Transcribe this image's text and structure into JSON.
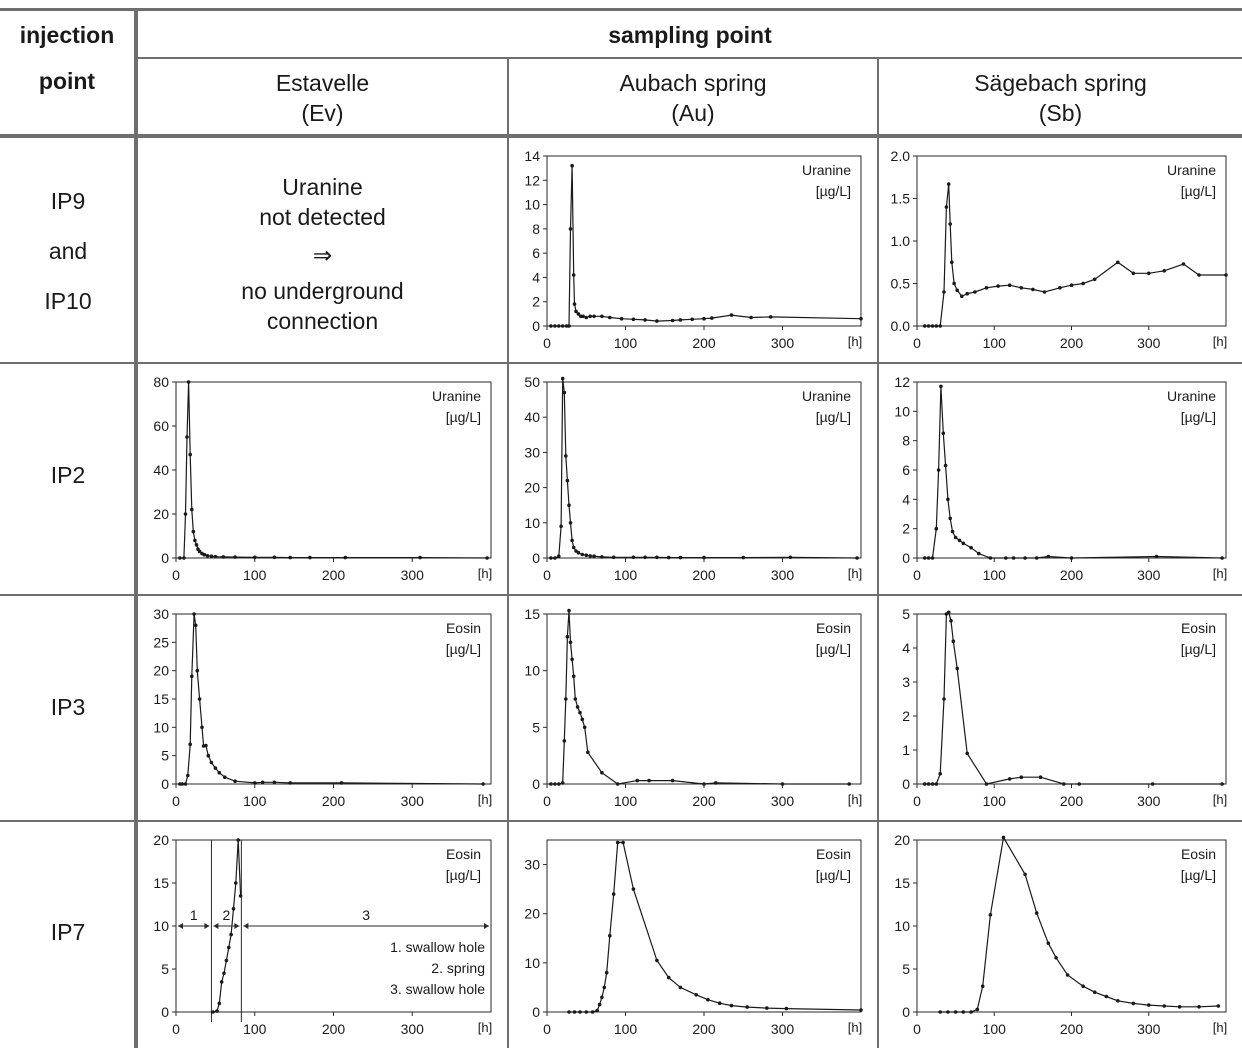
{
  "header": {
    "injection": "injection",
    "point": "point",
    "sampling_point": "sampling point",
    "columns": [
      {
        "name": "Estavelle",
        "abbr": "(Ev)"
      },
      {
        "name": "Aubach spring",
        "abbr": "(Au)"
      },
      {
        "name": "Sägebach spring",
        "abbr": "(Sb)"
      }
    ]
  },
  "rows": [
    {
      "label_lines": [
        "IP9",
        "and",
        "IP10"
      ]
    },
    {
      "label_lines": [
        "IP2"
      ]
    },
    {
      "label_lines": [
        "IP3"
      ]
    },
    {
      "label_lines": [
        "IP7"
      ]
    }
  ],
  "no_detection_note": {
    "line1": "Uranine",
    "line2": "not detected",
    "arrow": "⇒",
    "line3": "no underground",
    "line4": "connection"
  },
  "ip7_ev_annotations": {
    "segments": [
      "1",
      "2",
      "3"
    ],
    "legend": [
      "1. swallow hole",
      "2. spring",
      "3. swallow hole"
    ]
  },
  "chart_data": [
    {
      "id": "au-ip9",
      "type": "line",
      "tracer": "Uranine",
      "unit": "[µg/L]",
      "xunit": "[h]",
      "xlim": [
        0,
        400
      ],
      "ylim": [
        0,
        14
      ],
      "yticks": [
        0,
        2,
        4,
        6,
        8,
        10,
        12,
        14
      ],
      "ydec": 0,
      "points": [
        [
          5,
          0
        ],
        [
          10,
          0
        ],
        [
          15,
          0
        ],
        [
          20,
          0
        ],
        [
          25,
          0
        ],
        [
          28,
          0
        ],
        [
          30,
          8
        ],
        [
          32,
          13.2
        ],
        [
          34,
          4.2
        ],
        [
          35,
          1.8
        ],
        [
          37,
          1.2
        ],
        [
          40,
          1
        ],
        [
          43,
          0.8
        ],
        [
          46,
          0.8
        ],
        [
          50,
          0.7
        ],
        [
          55,
          0.8
        ],
        [
          60,
          0.8
        ],
        [
          70,
          0.8
        ],
        [
          80,
          0.7
        ],
        [
          95,
          0.6
        ],
        [
          110,
          0.55
        ],
        [
          125,
          0.5
        ],
        [
          140,
          0.4
        ],
        [
          160,
          0.45
        ],
        [
          170,
          0.5
        ],
        [
          185,
          0.55
        ],
        [
          200,
          0.6
        ],
        [
          210,
          0.65
        ],
        [
          235,
          0.9
        ],
        [
          260,
          0.7
        ],
        [
          285,
          0.75
        ],
        [
          400,
          0.6
        ]
      ]
    },
    {
      "id": "sb-ip9",
      "type": "line",
      "tracer": "Uranine",
      "unit": "[µg/L]",
      "xunit": "[h]",
      "xlim": [
        0,
        400
      ],
      "ylim": [
        0,
        2.0
      ],
      "yticks": [
        0,
        0.5,
        1.0,
        1.5,
        2.0
      ],
      "ydec": 1,
      "points": [
        [
          10,
          0
        ],
        [
          15,
          0
        ],
        [
          20,
          0
        ],
        [
          25,
          0
        ],
        [
          30,
          0
        ],
        [
          35,
          0.4
        ],
        [
          38,
          1.4
        ],
        [
          41,
          1.67
        ],
        [
          43,
          1.2
        ],
        [
          45,
          0.75
        ],
        [
          48,
          0.5
        ],
        [
          52,
          0.42
        ],
        [
          58,
          0.35
        ],
        [
          65,
          0.38
        ],
        [
          75,
          0.4
        ],
        [
          90,
          0.45
        ],
        [
          105,
          0.47
        ],
        [
          120,
          0.48
        ],
        [
          135,
          0.45
        ],
        [
          150,
          0.43
        ],
        [
          165,
          0.4
        ],
        [
          185,
          0.45
        ],
        [
          200,
          0.48
        ],
        [
          215,
          0.5
        ],
        [
          230,
          0.55
        ],
        [
          260,
          0.75
        ],
        [
          280,
          0.62
        ],
        [
          300,
          0.62
        ],
        [
          320,
          0.65
        ],
        [
          345,
          0.73
        ],
        [
          365,
          0.6
        ],
        [
          400,
          0.6
        ]
      ]
    },
    {
      "id": "ev-ip2",
      "type": "line",
      "tracer": "Uranine",
      "unit": "[µg/L]",
      "xunit": "[h]",
      "xlim": [
        0,
        400
      ],
      "ylim": [
        0,
        80
      ],
      "yticks": [
        0,
        20,
        40,
        60,
        80
      ],
      "ydec": 0,
      "points": [
        [
          5,
          0
        ],
        [
          10,
          0
        ],
        [
          12,
          20
        ],
        [
          14,
          55
        ],
        [
          16,
          80
        ],
        [
          18,
          47
        ],
        [
          20,
          22
        ],
        [
          22,
          12
        ],
        [
          24,
          8
        ],
        [
          26,
          6
        ],
        [
          28,
          4
        ],
        [
          30,
          3
        ],
        [
          33,
          2
        ],
        [
          36,
          1.5
        ],
        [
          40,
          1
        ],
        [
          45,
          0.8
        ],
        [
          50,
          0.6
        ],
        [
          60,
          0.5
        ],
        [
          75,
          0.4
        ],
        [
          100,
          0.3
        ],
        [
          125,
          0.3
        ],
        [
          145,
          0.2
        ],
        [
          170,
          0.2
        ],
        [
          215,
          0.2
        ],
        [
          310,
          0.2
        ],
        [
          395,
          0
        ]
      ]
    },
    {
      "id": "au-ip2",
      "type": "line",
      "tracer": "Uranine",
      "unit": "[µg/L]",
      "xunit": "[h]",
      "xlim": [
        0,
        400
      ],
      "ylim": [
        0,
        50
      ],
      "yticks": [
        0,
        10,
        20,
        30,
        40,
        50
      ],
      "ydec": 0,
      "points": [
        [
          5,
          0
        ],
        [
          10,
          0
        ],
        [
          15,
          0.5
        ],
        [
          18,
          9
        ],
        [
          20,
          51
        ],
        [
          22,
          47
        ],
        [
          24,
          29
        ],
        [
          26,
          22
        ],
        [
          28,
          15
        ],
        [
          30,
          10
        ],
        [
          32,
          5
        ],
        [
          34,
          3
        ],
        [
          37,
          2
        ],
        [
          40,
          1.5
        ],
        [
          45,
          1
        ],
        [
          50,
          0.8
        ],
        [
          55,
          0.6
        ],
        [
          60,
          0.5
        ],
        [
          70,
          0.3
        ],
        [
          85,
          0.2
        ],
        [
          110,
          0.2
        ],
        [
          125,
          0.2
        ],
        [
          140,
          0.2
        ],
        [
          155,
          0.1
        ],
        [
          170,
          0.1
        ],
        [
          200,
          0.1
        ],
        [
          250,
          0.1
        ],
        [
          310,
          0.2
        ],
        [
          395,
          0
        ]
      ]
    },
    {
      "id": "sb-ip2",
      "type": "line",
      "tracer": "Uranine",
      "unit": "[µg/L]",
      "xunit": "[h]",
      "xlim": [
        0,
        400
      ],
      "ylim": [
        0,
        12
      ],
      "yticks": [
        0,
        2,
        4,
        6,
        8,
        10,
        12
      ],
      "ydec": 0,
      "points": [
        [
          10,
          0
        ],
        [
          15,
          0
        ],
        [
          20,
          0
        ],
        [
          25,
          2
        ],
        [
          28,
          6
        ],
        [
          31,
          11.7
        ],
        [
          34,
          8.5
        ],
        [
          37,
          6.3
        ],
        [
          40,
          4
        ],
        [
          43,
          2.7
        ],
        [
          46,
          1.8
        ],
        [
          50,
          1.4
        ],
        [
          55,
          1.2
        ],
        [
          60,
          1
        ],
        [
          70,
          0.7
        ],
        [
          80,
          0.3
        ],
        [
          95,
          0
        ],
        [
          115,
          0
        ],
        [
          125,
          0
        ],
        [
          140,
          0
        ],
        [
          155,
          0
        ],
        [
          170,
          0.1
        ],
        [
          200,
          0
        ],
        [
          310,
          0.1
        ],
        [
          395,
          0
        ]
      ]
    },
    {
      "id": "ev-ip3",
      "type": "line",
      "tracer": "Eosin",
      "unit": "[µg/L]",
      "xunit": "[h]",
      "xlim": [
        0,
        400
      ],
      "ylim": [
        0,
        30
      ],
      "yticks": [
        0,
        5,
        10,
        15,
        20,
        25,
        30
      ],
      "ydec": 0,
      "points": [
        [
          5,
          0
        ],
        [
          8,
          0
        ],
        [
          12,
          0
        ],
        [
          15,
          1.5
        ],
        [
          18,
          7
        ],
        [
          20,
          19
        ],
        [
          23,
          30
        ],
        [
          25,
          28
        ],
        [
          27,
          20
        ],
        [
          30,
          15
        ],
        [
          33,
          10
        ],
        [
          35,
          6.7
        ],
        [
          38,
          6.8
        ],
        [
          41,
          5
        ],
        [
          45,
          3.8
        ],
        [
          50,
          2.8
        ],
        [
          55,
          2
        ],
        [
          62,
          1.2
        ],
        [
          75,
          0.5
        ],
        [
          100,
          0.2
        ],
        [
          110,
          0.3
        ],
        [
          125,
          0.3
        ],
        [
          145,
          0.2
        ],
        [
          210,
          0.2
        ],
        [
          390,
          0
        ]
      ]
    },
    {
      "id": "au-ip3",
      "type": "line",
      "tracer": "Eosin",
      "unit": "[µg/L]",
      "xunit": "[h]",
      "xlim": [
        0,
        400
      ],
      "ylim": [
        0,
        15
      ],
      "yticks": [
        0,
        5,
        10,
        15
      ],
      "ydec": 0,
      "points": [
        [
          5,
          0
        ],
        [
          10,
          0
        ],
        [
          15,
          0
        ],
        [
          20,
          0.1
        ],
        [
          22,
          3.8
        ],
        [
          24,
          7.5
        ],
        [
          26,
          13
        ],
        [
          28,
          15.3
        ],
        [
          30,
          12.5
        ],
        [
          32,
          11
        ],
        [
          34,
          9.5
        ],
        [
          36,
          7.5
        ],
        [
          39,
          6.8
        ],
        [
          42,
          6.3
        ],
        [
          45,
          5.7
        ],
        [
          48,
          5
        ],
        [
          52,
          2.8
        ],
        [
          70,
          1
        ],
        [
          90,
          0
        ],
        [
          115,
          0.3
        ],
        [
          130,
          0.3
        ],
        [
          160,
          0.3
        ],
        [
          200,
          0
        ],
        [
          215,
          0.1
        ],
        [
          300,
          0
        ],
        [
          385,
          0
        ]
      ]
    },
    {
      "id": "sb-ip3",
      "type": "line",
      "tracer": "Eosin",
      "unit": "[µg/L]",
      "xunit": "[h]",
      "xlim": [
        0,
        400
      ],
      "ylim": [
        0,
        5
      ],
      "yticks": [
        0,
        1,
        2,
        3,
        4,
        5
      ],
      "ydec": 0,
      "points": [
        [
          10,
          0
        ],
        [
          15,
          0
        ],
        [
          20,
          0
        ],
        [
          25,
          0
        ],
        [
          30,
          0.3
        ],
        [
          35,
          2.5
        ],
        [
          38,
          5
        ],
        [
          41,
          5.05
        ],
        [
          44,
          4.8
        ],
        [
          47,
          4.2
        ],
        [
          52,
          3.4
        ],
        [
          65,
          0.9
        ],
        [
          90,
          0
        ],
        [
          120,
          0.15
        ],
        [
          135,
          0.2
        ],
        [
          160,
          0.2
        ],
        [
          190,
          0
        ],
        [
          210,
          0
        ],
        [
          305,
          0
        ],
        [
          395,
          0
        ]
      ]
    },
    {
      "id": "ev-ip7",
      "type": "line",
      "tracer": "Eosin",
      "unit": "[µg/L]",
      "xunit": "[h]",
      "xlim": [
        0,
        400
      ],
      "ylim": [
        0,
        20
      ],
      "yticks": [
        0,
        5,
        10,
        15,
        20
      ],
      "ydec": 0,
      "vlines": [
        45,
        83
      ],
      "points": [
        [
          47,
          0
        ],
        [
          52,
          0.1
        ],
        [
          55,
          1
        ],
        [
          58,
          3.5
        ],
        [
          61,
          4.5
        ],
        [
          64,
          6
        ],
        [
          67,
          7.5
        ],
        [
          70,
          9
        ],
        [
          73,
          12
        ],
        [
          76,
          15
        ],
        [
          79,
          20
        ],
        [
          82,
          13.5
        ]
      ]
    },
    {
      "id": "au-ip7",
      "type": "line",
      "tracer": "Eosin",
      "unit": "[µg/L]",
      "xunit": "[h]",
      "xlim": [
        0,
        400
      ],
      "ylim": [
        0,
        35
      ],
      "yticks": [
        0,
        10,
        20,
        30
      ],
      "ydec": 0,
      "points": [
        [
          28,
          0
        ],
        [
          35,
          0
        ],
        [
          42,
          0
        ],
        [
          50,
          0
        ],
        [
          58,
          0
        ],
        [
          64,
          0.3
        ],
        [
          67,
          1.5
        ],
        [
          70,
          3
        ],
        [
          73,
          5
        ],
        [
          76,
          8
        ],
        [
          80,
          15.5
        ],
        [
          85,
          24
        ],
        [
          90,
          34.5
        ],
        [
          97,
          34.5
        ],
        [
          110,
          25
        ],
        [
          140,
          10.5
        ],
        [
          155,
          7
        ],
        [
          170,
          5
        ],
        [
          190,
          3.5
        ],
        [
          205,
          2.5
        ],
        [
          220,
          1.8
        ],
        [
          235,
          1.3
        ],
        [
          255,
          1
        ],
        [
          280,
          0.8
        ],
        [
          305,
          0.7
        ],
        [
          400,
          0.4
        ]
      ]
    },
    {
      "id": "sb-ip7",
      "type": "line",
      "tracer": "Eosin",
      "unit": "[µg/L]",
      "xunit": "[h]",
      "xlim": [
        0,
        400
      ],
      "ylim": [
        0,
        20
      ],
      "yticks": [
        0,
        5,
        10,
        15,
        20
      ],
      "ydec": 0,
      "points": [
        [
          30,
          0
        ],
        [
          40,
          0
        ],
        [
          50,
          0
        ],
        [
          60,
          0
        ],
        [
          70,
          0
        ],
        [
          78,
          0.3
        ],
        [
          85,
          3
        ],
        [
          95,
          11.3
        ],
        [
          112,
          20.3
        ],
        [
          140,
          16
        ],
        [
          155,
          11.5
        ],
        [
          170,
          8
        ],
        [
          180,
          6.3
        ],
        [
          195,
          4.3
        ],
        [
          215,
          3
        ],
        [
          230,
          2.3
        ],
        [
          245,
          1.8
        ],
        [
          260,
          1.3
        ],
        [
          280,
          1
        ],
        [
          300,
          0.8
        ],
        [
          320,
          0.7
        ],
        [
          340,
          0.6
        ],
        [
          365,
          0.6
        ],
        [
          390,
          0.7
        ]
      ]
    }
  ]
}
